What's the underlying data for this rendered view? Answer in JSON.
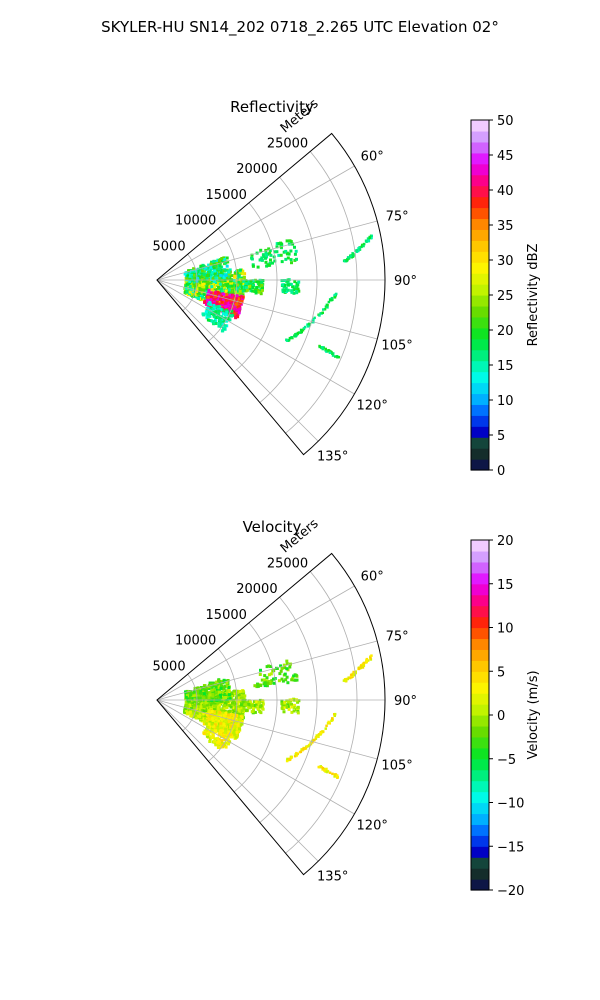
{
  "figure": {
    "title": "SKYLER-HU  SN14_202  0718_2.265 UTC Elevation 02°"
  },
  "chart_data": [
    {
      "type": "heatmap",
      "subtype": "polar-sector",
      "title": "Reflectivity",
      "radial_label": "Meters",
      "radial_ticks": [
        5000,
        10000,
        15000,
        20000,
        25000
      ],
      "rlim": [
        0,
        28500
      ],
      "angle_ticks": [
        "60°",
        "75°",
        "90°",
        "105°",
        "120°",
        "135°"
      ],
      "angle_range_deg": [
        50,
        140
      ],
      "grid": true,
      "colorbar": {
        "label": "Reflectivity dBZ",
        "ticks": [
          "0",
          "5",
          "10",
          "15",
          "20",
          "25",
          "30",
          "35",
          "40",
          "45",
          "50"
        ],
        "range": [
          0,
          50
        ],
        "colormap": "pyart_HomeyerRainbow"
      }
    },
    {
      "type": "heatmap",
      "subtype": "polar-sector",
      "title": "Velocity",
      "radial_label": "Meters",
      "radial_ticks": [
        5000,
        10000,
        15000,
        20000,
        25000
      ],
      "rlim": [
        0,
        28500
      ],
      "angle_ticks": [
        "60°",
        "75°",
        "90°",
        "105°",
        "120°",
        "135°"
      ],
      "angle_range_deg": [
        50,
        140
      ],
      "grid": true,
      "colorbar": {
        "label": "Velocity (m/s)",
        "ticks": [
          "20",
          "15",
          "10",
          "5",
          "0",
          "−5",
          "−10",
          "−15",
          "−20"
        ],
        "range": [
          -20,
          20
        ],
        "colormap": "pyart_HomeyerRainbow"
      }
    }
  ],
  "colors": {
    "grid": "#b0b0b0",
    "frame": "#000000"
  }
}
